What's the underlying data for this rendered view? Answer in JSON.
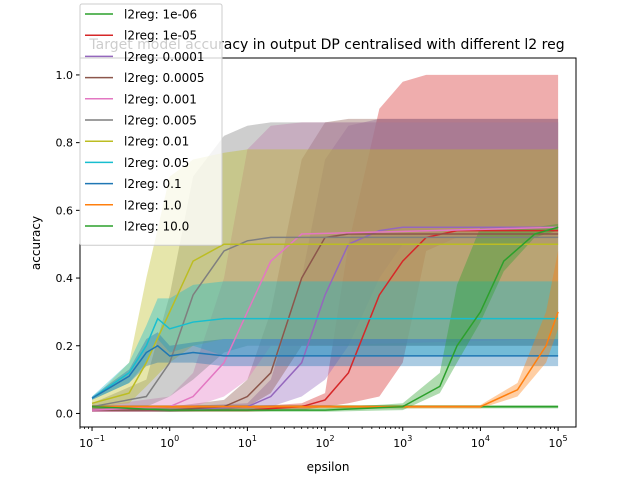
{
  "chart_data": {
    "type": "line",
    "title": "Target model accuracy in output DP centralised with different l2 reg",
    "xlabel": "epsilon",
    "ylabel": "accuracy",
    "xscale": "log",
    "xlim": [
      0.07,
      170000
    ],
    "ylim": [
      -0.04,
      1.05
    ],
    "x_ticks": [
      {
        "value": 0.1,
        "base": "10",
        "exp": "−1"
      },
      {
        "value": 1,
        "base": "10",
        "exp": "0"
      },
      {
        "value": 10,
        "base": "10",
        "exp": "1"
      },
      {
        "value": 100,
        "base": "10",
        "exp": "2"
      },
      {
        "value": 1000,
        "base": "10",
        "exp": "3"
      },
      {
        "value": 10000,
        "base": "10",
        "exp": "4"
      },
      {
        "value": 100000,
        "base": "10",
        "exp": "5"
      }
    ],
    "y_ticks": [
      {
        "value": 0.0,
        "label": "0.0"
      },
      {
        "value": 0.2,
        "label": "0.2"
      },
      {
        "value": 0.4,
        "label": "0.4"
      },
      {
        "value": 0.6,
        "label": "0.6"
      },
      {
        "value": 0.8,
        "label": "0.8"
      },
      {
        "value": 1.0,
        "label": "1.0"
      }
    ],
    "grid": false,
    "legend_position": "top-left",
    "series": [
      {
        "name": "l2reg: 1e-06",
        "color": "#2ca02c",
        "x": [
          0.1,
          1,
          10,
          100,
          1000,
          10000,
          100000
        ],
        "y": [
          0.02,
          0.02,
          0.02,
          0.02,
          0.02,
          0.02,
          0.02
        ],
        "band_low": [
          0.015,
          0.015,
          0.015,
          0.015,
          0.015,
          0.015,
          0.015
        ],
        "band_high": [
          0.025,
          0.025,
          0.025,
          0.025,
          0.025,
          0.025,
          0.025
        ]
      },
      {
        "name": "l2reg: 1e-05",
        "color": "#d62728",
        "x": [
          0.1,
          1,
          10,
          50,
          100,
          200,
          500,
          1000,
          2000,
          5000,
          100000
        ],
        "y": [
          0.01,
          0.01,
          0.01,
          0.02,
          0.04,
          0.12,
          0.35,
          0.45,
          0.52,
          0.54,
          0.54
        ],
        "band_low": [
          0.005,
          0.005,
          0.005,
          0.01,
          0.02,
          0.03,
          0.05,
          0.15,
          0.48,
          0.52,
          0.52
        ],
        "band_high": [
          0.015,
          0.015,
          0.02,
          0.03,
          0.06,
          0.5,
          0.9,
          0.98,
          1.0,
          1.0,
          1.0
        ]
      },
      {
        "name": "l2reg: 0.0001",
        "color": "#9467bd",
        "x": [
          0.1,
          1,
          10,
          20,
          50,
          100,
          200,
          500,
          1000,
          100000
        ],
        "y": [
          0.01,
          0.01,
          0.02,
          0.05,
          0.15,
          0.35,
          0.5,
          0.54,
          0.55,
          0.55
        ],
        "band_low": [
          0.005,
          0.005,
          0.01,
          0.02,
          0.05,
          0.1,
          0.2,
          0.4,
          0.5,
          0.5
        ],
        "band_high": [
          0.015,
          0.02,
          0.03,
          0.1,
          0.4,
          0.75,
          0.85,
          0.87,
          0.87,
          0.87
        ]
      },
      {
        "name": "l2reg: 0.0005",
        "color": "#8c564b",
        "x": [
          0.1,
          1,
          5,
          10,
          20,
          50,
          100,
          200,
          500,
          1000,
          100000
        ],
        "y": [
          0.01,
          0.01,
          0.02,
          0.05,
          0.12,
          0.4,
          0.52,
          0.53,
          0.53,
          0.53,
          0.53
        ],
        "band_low": [
          0.005,
          0.005,
          0.01,
          0.02,
          0.06,
          0.2,
          0.2,
          0.2,
          0.2,
          0.2,
          0.2
        ],
        "band_high": [
          0.015,
          0.02,
          0.04,
          0.1,
          0.3,
          0.75,
          0.86,
          0.87,
          0.87,
          0.87,
          0.87
        ]
      },
      {
        "name": "l2reg: 0.001",
        "color": "#e377c2",
        "x": [
          0.1,
          1,
          2,
          5,
          10,
          20,
          50,
          100000
        ],
        "y": [
          0.01,
          0.02,
          0.05,
          0.15,
          0.3,
          0.45,
          0.53,
          0.55
        ],
        "band_low": [
          0.005,
          0.01,
          0.02,
          0.05,
          0.1,
          0.2,
          0.2,
          0.22
        ],
        "band_high": [
          0.02,
          0.05,
          0.12,
          0.4,
          0.78,
          0.85,
          0.86,
          0.86
        ]
      },
      {
        "name": "l2reg: 0.005",
        "color": "#7f7f7f",
        "x": [
          0.1,
          0.5,
          1,
          2,
          5,
          10,
          20,
          100000
        ],
        "y": [
          0.02,
          0.05,
          0.15,
          0.35,
          0.48,
          0.51,
          0.52,
          0.52
        ],
        "band_low": [
          0.01,
          0.02,
          0.05,
          0.1,
          0.18,
          0.2,
          0.2,
          0.2
        ],
        "band_high": [
          0.03,
          0.1,
          0.35,
          0.7,
          0.82,
          0.85,
          0.86,
          0.86
        ]
      },
      {
        "name": "l2reg: 0.01",
        "color": "#bcbd22",
        "x": [
          0.1,
          0.3,
          0.5,
          1,
          2,
          5,
          10,
          100000
        ],
        "y": [
          0.03,
          0.06,
          0.15,
          0.3,
          0.45,
          0.5,
          0.5,
          0.5
        ],
        "band_low": [
          0.02,
          0.03,
          0.08,
          0.15,
          0.2,
          0.22,
          0.22,
          0.22
        ],
        "band_high": [
          0.04,
          0.15,
          0.4,
          0.7,
          0.75,
          0.77,
          0.78,
          0.78
        ]
      },
      {
        "name": "l2reg: 0.05",
        "color": "#17becf",
        "x": [
          0.1,
          0.3,
          0.5,
          0.7,
          1,
          2,
          5,
          10,
          100000
        ],
        "y": [
          0.045,
          0.12,
          0.2,
          0.28,
          0.25,
          0.27,
          0.28,
          0.28,
          0.28
        ],
        "band_low": [
          0.04,
          0.09,
          0.15,
          0.22,
          0.18,
          0.2,
          0.17,
          0.17,
          0.17
        ],
        "band_high": [
          0.05,
          0.15,
          0.26,
          0.34,
          0.34,
          0.38,
          0.39,
          0.39,
          0.39
        ]
      },
      {
        "name": "l2reg: 0.1",
        "color": "#1f77b4",
        "x": [
          0.1,
          0.3,
          0.5,
          0.7,
          1,
          2,
          5,
          10,
          100000
        ],
        "y": [
          0.045,
          0.11,
          0.18,
          0.2,
          0.17,
          0.18,
          0.17,
          0.17,
          0.17
        ],
        "band_low": [
          0.04,
          0.09,
          0.14,
          0.15,
          0.15,
          0.15,
          0.14,
          0.14,
          0.14
        ],
        "band_high": [
          0.05,
          0.13,
          0.22,
          0.24,
          0.2,
          0.21,
          0.22,
          0.22,
          0.22
        ]
      },
      {
        "name": "l2reg: 1.0",
        "color": "#ff7f0e",
        "x": [
          0.1,
          1,
          10,
          100,
          1000,
          10000,
          30000,
          70000,
          100000
        ],
        "y": [
          0.02,
          0.02,
          0.02,
          0.02,
          0.02,
          0.02,
          0.07,
          0.2,
          0.3
        ],
        "band_low": [
          0.015,
          0.015,
          0.015,
          0.015,
          0.015,
          0.015,
          0.05,
          0.15,
          0.25
        ],
        "band_high": [
          0.025,
          0.025,
          0.025,
          0.025,
          0.025,
          0.025,
          0.09,
          0.3,
          0.48
        ]
      },
      {
        "name": "l2reg: 10.0",
        "color": "#2ca02c",
        "x": [
          0.1,
          1,
          10,
          100,
          1000,
          3000,
          5000,
          10000,
          20000,
          50000,
          100000
        ],
        "y": [
          0.02,
          0.01,
          0.01,
          0.01,
          0.02,
          0.08,
          0.2,
          0.3,
          0.45,
          0.53,
          0.55
        ],
        "band_low": [
          0.015,
          0.005,
          0.005,
          0.005,
          0.01,
          0.06,
          0.15,
          0.27,
          0.42,
          0.52,
          0.54
        ],
        "band_high": [
          0.025,
          0.015,
          0.015,
          0.015,
          0.03,
          0.12,
          0.38,
          0.55,
          0.55,
          0.55,
          0.56
        ]
      }
    ]
  }
}
